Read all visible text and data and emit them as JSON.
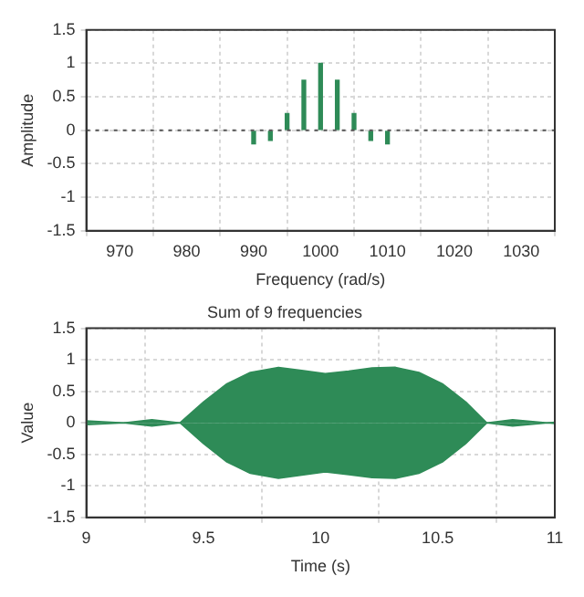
{
  "chart_data": [
    {
      "type": "bar",
      "xlabel": "Frequency (rad/s)",
      "ylabel": "Amplitude",
      "x": [
        990,
        992.5,
        995,
        997.5,
        1000,
        1002.5,
        1005,
        1007.5,
        1010
      ],
      "series": [
        {
          "color": "#2e8b57",
          "values": [
            -0.2,
            -0.15,
            0.25,
            0.75,
            1,
            0.75,
            0.25,
            -0.15,
            -0.2
          ]
        }
      ],
      "xlim": [
        965,
        1035
      ],
      "xticks": [
        970,
        980,
        990,
        1000,
        1010,
        1020,
        1030
      ],
      "ylim": [
        -1.5,
        1.5
      ],
      "yticks": [
        -1.5,
        -1,
        -0.5,
        0,
        0.5,
        1,
        1.5
      ],
      "grid": true,
      "legend": false,
      "ref_lines": [
        {
          "axis": "y",
          "value": 0,
          "line_style": "dotted",
          "color": "#555555"
        }
      ]
    },
    {
      "type": "area",
      "title": "Sum of 9 frequencies",
      "xlabel": "Time (s)",
      "ylabel": "Value",
      "x": [
        9,
        9.16,
        9.28,
        9.4,
        9.5,
        9.6,
        9.7,
        9.82,
        9.92,
        10.02,
        10.12,
        10.22,
        10.32,
        10.42,
        10.52,
        10.62,
        10.71,
        10.82,
        10.97,
        11
      ],
      "series": [
        {
          "color": "#2e8b57",
          "values": [
            0.03,
            0,
            0.05,
            0,
            0.33,
            0.62,
            0.8,
            0.88,
            0.83,
            0.78,
            0.82,
            0.87,
            0.88,
            0.8,
            0.62,
            0.33,
            0,
            0.05,
            0,
            0.01
          ]
        },
        {
          "color": "#2e8b57",
          "values": [
            -0.03,
            0,
            -0.05,
            0,
            -0.33,
            -0.62,
            -0.8,
            -0.88,
            -0.83,
            -0.78,
            -0.82,
            -0.87,
            -0.88,
            -0.8,
            -0.62,
            -0.33,
            0,
            -0.05,
            0,
            -0.01
          ]
        }
      ],
      "xlim": [
        9,
        11
      ],
      "xticks": [
        9,
        9.5,
        10,
        10.5,
        11
      ],
      "ylim": [
        -1.5,
        1.5
      ],
      "yticks": [
        -1.5,
        -1,
        -0.5,
        0,
        0.5,
        1,
        1.5
      ],
      "grid": true,
      "legend": false
    }
  ]
}
